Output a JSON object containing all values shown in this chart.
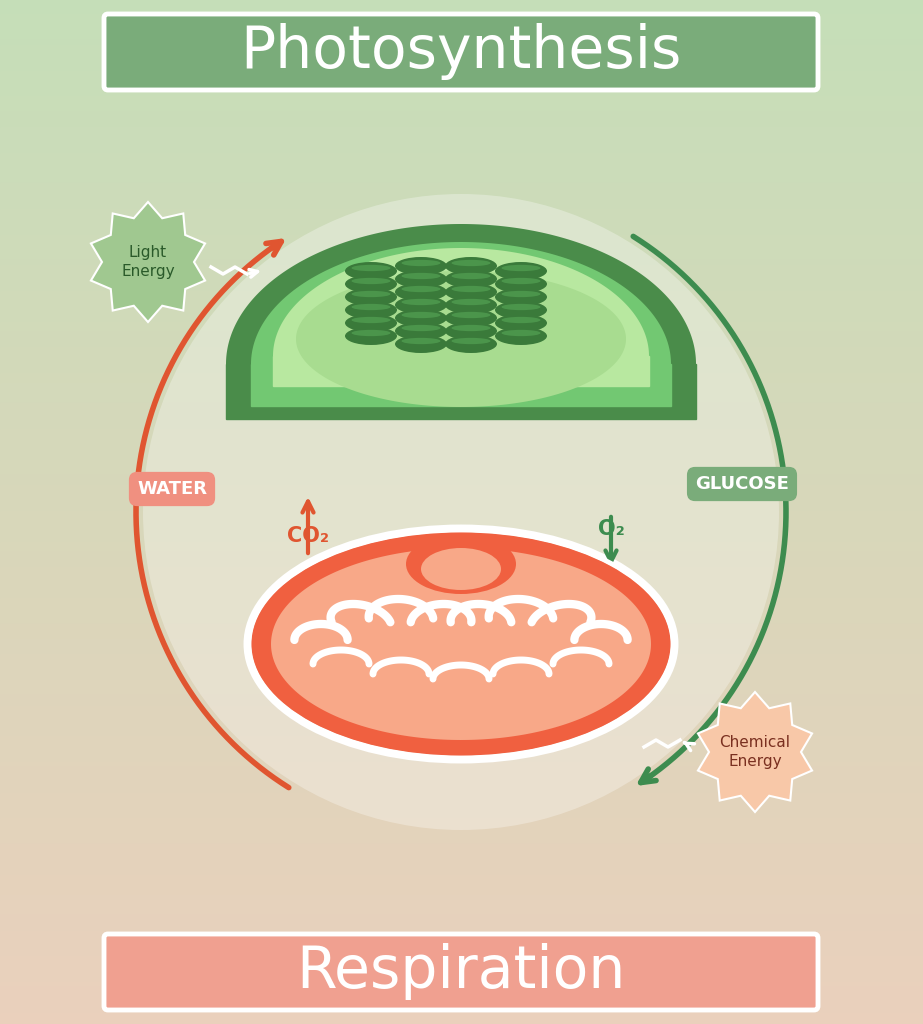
{
  "title_photosynthesis": "Photosynthesis",
  "title_respiration": "Respiration",
  "photo_box_color": "#7aac7a",
  "resp_box_color": "#f0a090",
  "title_text_color": "#ffffff",
  "bg_top": "#c5deb8",
  "bg_bottom": "#ead0bc",
  "green_arrow_color": "#3d8c4f",
  "red_arrow_color": "#e05530",
  "label_water_text": "WATER",
  "label_glucose_text": "GLUCOSE",
  "label_co2_text": "CO₂",
  "label_o2_text": "O₂",
  "label_light_text": "Light\nEnergy",
  "label_chemical_text": "Chemical\nEnergy",
  "chloro_dark": "#4a8c4a",
  "chloro_mid": "#72c872",
  "chloro_light": "#98e078",
  "chloro_stroma": "#b8e8a0",
  "chloro_thylakoid_dark": "#3a7a3a",
  "chloro_thylakoid_mid": "#58a858",
  "mito_orange": "#f06040",
  "mito_light": "#f8a888",
  "mito_fill": "#f0b898",
  "star_green": "#a0c890",
  "star_orange": "#f8c8a8",
  "water_badge": "#f09080",
  "glucose_badge": "#7aac7a"
}
